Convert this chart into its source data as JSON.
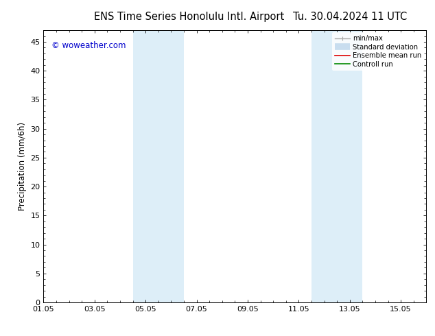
{
  "title_left": "ENS Time Series Honolulu Intl. Airport",
  "title_right": "Tu. 30.04.2024 11 UTC",
  "ylabel": "Precipitation (mm/6h)",
  "ylim": [
    0,
    47
  ],
  "yticks": [
    0,
    5,
    10,
    15,
    20,
    25,
    30,
    35,
    40,
    45
  ],
  "xlim": [
    0,
    15
  ],
  "xtick_labels": [
    "01.05",
    "03.05",
    "05.05",
    "07.05",
    "09.05",
    "11.05",
    "13.05",
    "15.05"
  ],
  "xtick_positions": [
    0,
    2,
    4,
    6,
    8,
    10,
    12,
    14
  ],
  "shaded_bands": [
    {
      "x_start": 3.5,
      "x_end": 5.5,
      "color": "#ddeef8"
    },
    {
      "x_start": 10.5,
      "x_end": 12.5,
      "color": "#ddeef8"
    }
  ],
  "watermark_text": "© woweather.com",
  "watermark_color": "#0000cc",
  "legend_items": [
    {
      "label": "min/max",
      "color": "#aaaaaa",
      "lw": 1.0,
      "style": "line_with_caps"
    },
    {
      "label": "Standard deviation",
      "color": "#c8ddef",
      "lw": 7,
      "style": "thick"
    },
    {
      "label": "Ensemble mean run",
      "color": "#dd0000",
      "lw": 1.2,
      "style": "line"
    },
    {
      "label": "Controll run",
      "color": "#008800",
      "lw": 1.2,
      "style": "line"
    }
  ],
  "bg_color": "#ffffff",
  "plot_bg_color": "#ffffff",
  "tick_color": "#000000",
  "spine_color": "#000000",
  "title_fontsize": 10.5,
  "axis_label_fontsize": 8.5,
  "tick_fontsize": 8,
  "watermark_fontsize": 8.5
}
